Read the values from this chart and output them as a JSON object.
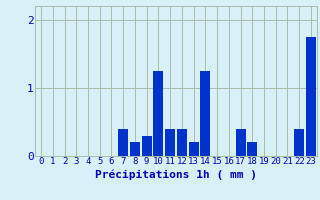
{
  "hours": [
    0,
    1,
    2,
    3,
    4,
    5,
    6,
    7,
    8,
    9,
    10,
    11,
    12,
    13,
    14,
    15,
    16,
    17,
    18,
    19,
    20,
    21,
    22,
    23
  ],
  "values": [
    0,
    0,
    0,
    0,
    0,
    0,
    0,
    0.4,
    0.2,
    0.3,
    1.25,
    0.4,
    0.4,
    0.2,
    1.25,
    0,
    0,
    0.4,
    0.2,
    0,
    0,
    0,
    0.4,
    1.75
  ],
  "bar_color": "#0033cc",
  "bg_color": "#d8f0f8",
  "grid_color": "#aabcaa",
  "axis_color": "#0000bb",
  "title": "Précipitations 1h ( mm )",
  "ylim": [
    0,
    2.2
  ],
  "yticks": [
    0,
    1,
    2
  ],
  "title_fontsize": 8,
  "tick_fontsize": 6.5
}
